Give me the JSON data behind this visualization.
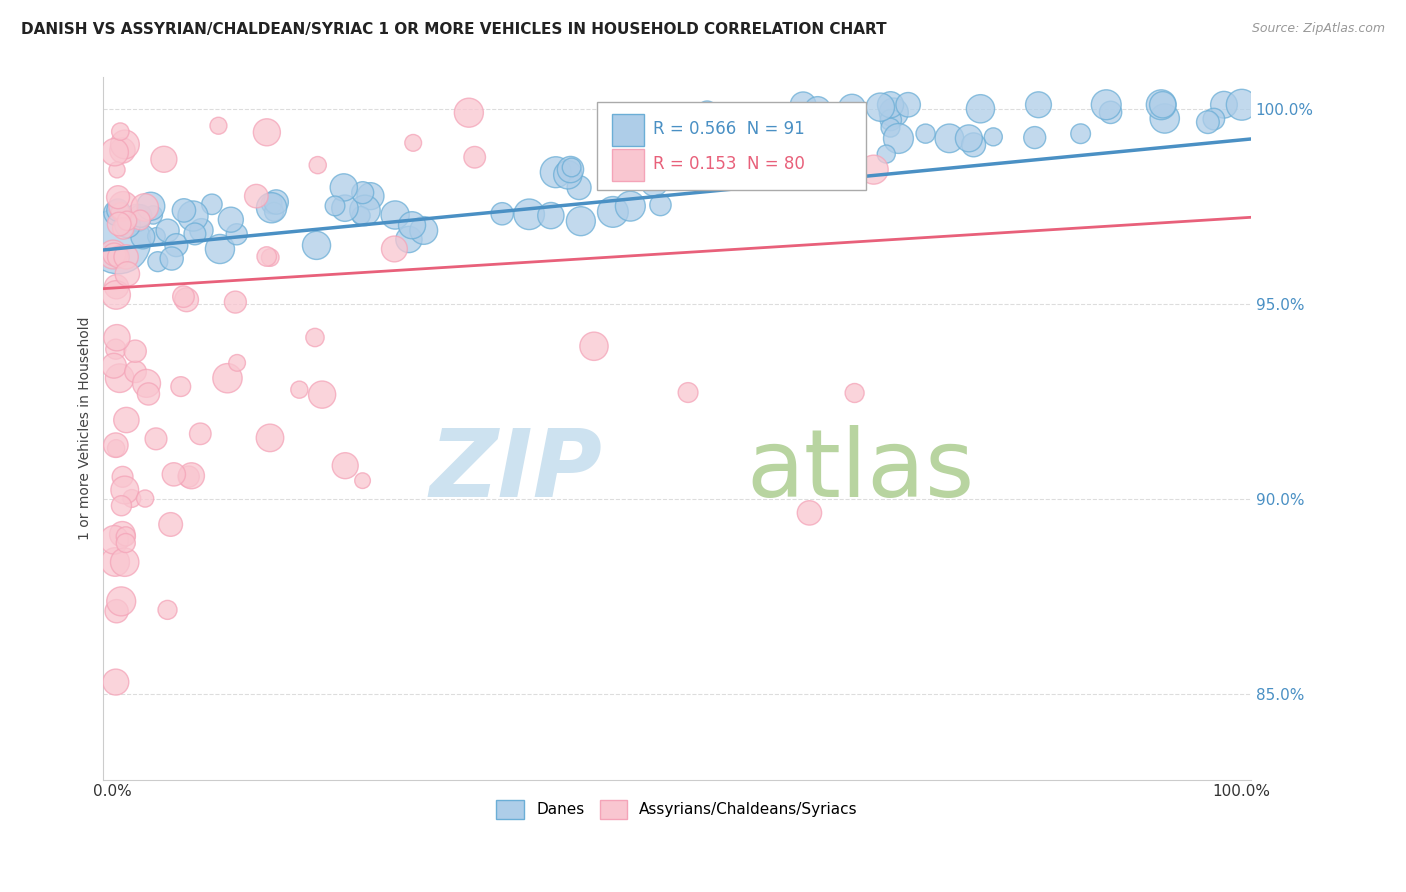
{
  "title": "DANISH VS ASSYRIAN/CHALDEAN/SYRIAC 1 OR MORE VEHICLES IN HOUSEHOLD CORRELATION CHART",
  "source": "Source: ZipAtlas.com",
  "ylabel": "1 or more Vehicles in Household",
  "legend_labels": [
    "Danes",
    "Assyrians/Chaldeans/Syriacs"
  ],
  "r_danes": 0.566,
  "n_danes": 91,
  "r_assyrian": 0.153,
  "n_assyrian": 80,
  "blue_color": "#6baed6",
  "pink_color": "#f4a4b8",
  "blue_fill": "#aecde8",
  "pink_fill": "#f9c6d0",
  "trend_blue": "#4a90c4",
  "trend_pink": "#e8607a",
  "ymin": 0.828,
  "ymax": 1.008,
  "xmin": -0.008,
  "xmax": 1.008,
  "yticks": [
    0.85,
    0.9,
    0.95,
    1.0
  ],
  "ytick_labels": [
    "85.0%",
    "90.0%",
    "95.0%",
    "100.0%"
  ],
  "title_fontsize": 11,
  "source_fontsize": 9,
  "axis_tick_fontsize": 11,
  "ylabel_fontsize": 10
}
